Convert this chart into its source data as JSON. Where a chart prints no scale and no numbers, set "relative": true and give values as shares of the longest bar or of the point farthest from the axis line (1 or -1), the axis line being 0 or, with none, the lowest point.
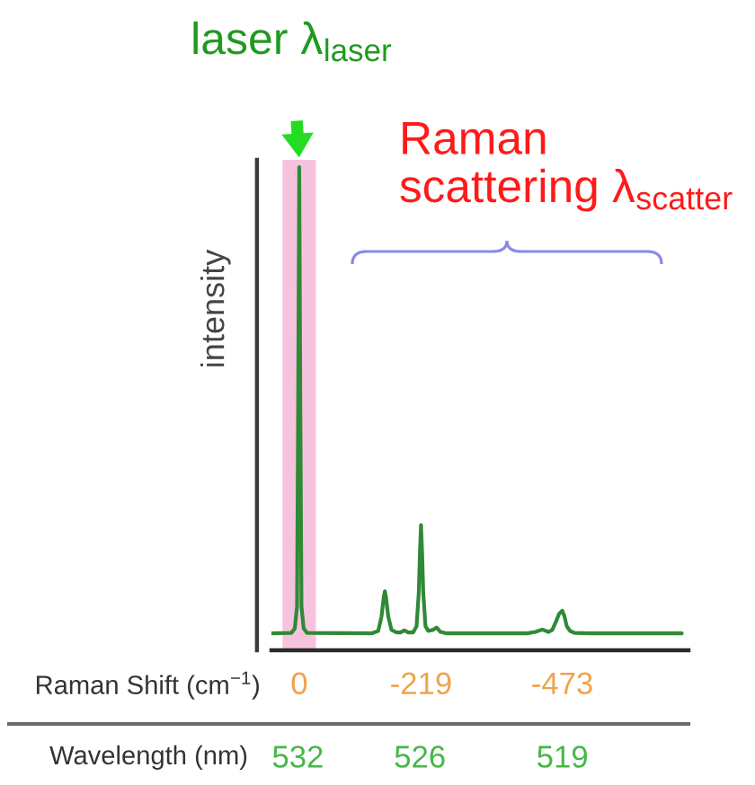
{
  "chart_data": {
    "type": "line",
    "ylabel": "intensity",
    "xlabel": "Raman Shift (cm$^{−1}$)",
    "x2label": "Wavelength (nm)",
    "xlim": [
      50,
      -700
    ],
    "xticks": [
      0,
      -219,
      -473
    ],
    "x2lim": [
      546.2,
      512.8
    ],
    "x2ticks": [
      532,
      526,
      519
    ],
    "relative": true,
    "tick_labels": "x",
    "grid": false,
    "line_style": "solid",
    "series": [
      {
        "color": "#2f8a35",
        "x": [
          48,
          14,
          8,
          4,
          2,
          0,
          -2,
          -4,
          -8,
          -14,
          -130,
          -142,
          -148,
          -152,
          -154,
          -156,
          -160,
          -166,
          -175,
          -182,
          -189,
          -196,
          -205,
          -211,
          -215,
          -217,
          -219,
          -221,
          -223,
          -227,
          -232,
          -240,
          -247,
          -254,
          -265,
          -410,
          -425,
          -437,
          -448,
          -455,
          -462,
          -467,
          -473,
          -477,
          -481,
          -487,
          -495,
          -520,
          -688
        ],
        "values": [
          0.035,
          0.036,
          0.045,
          0.09,
          0.5,
          1,
          0.5,
          0.09,
          0.045,
          0.036,
          0.035,
          0.04,
          0.07,
          0.11,
          0.122,
          0.11,
          0.07,
          0.042,
          0.037,
          0.037,
          0.041,
          0.037,
          0.037,
          0.05,
          0.12,
          0.2,
          0.259,
          0.2,
          0.12,
          0.05,
          0.04,
          0.042,
          0.047,
          0.038,
          0.035,
          0.035,
          0.038,
          0.043,
          0.038,
          0.042,
          0.06,
          0.075,
          0.082,
          0.07,
          0.05,
          0.04,
          0.036,
          0.035,
          0.035
        ]
      }
    ],
    "bands": [
      {
        "axis": "x",
        "from": 30,
        "to": -30,
        "label": "laser λ$_{laser}$",
        "color": "#f6c3de"
      }
    ],
    "annotations": [
      "Raman\nscattering λ$_{scatter}$"
    ]
  }
}
